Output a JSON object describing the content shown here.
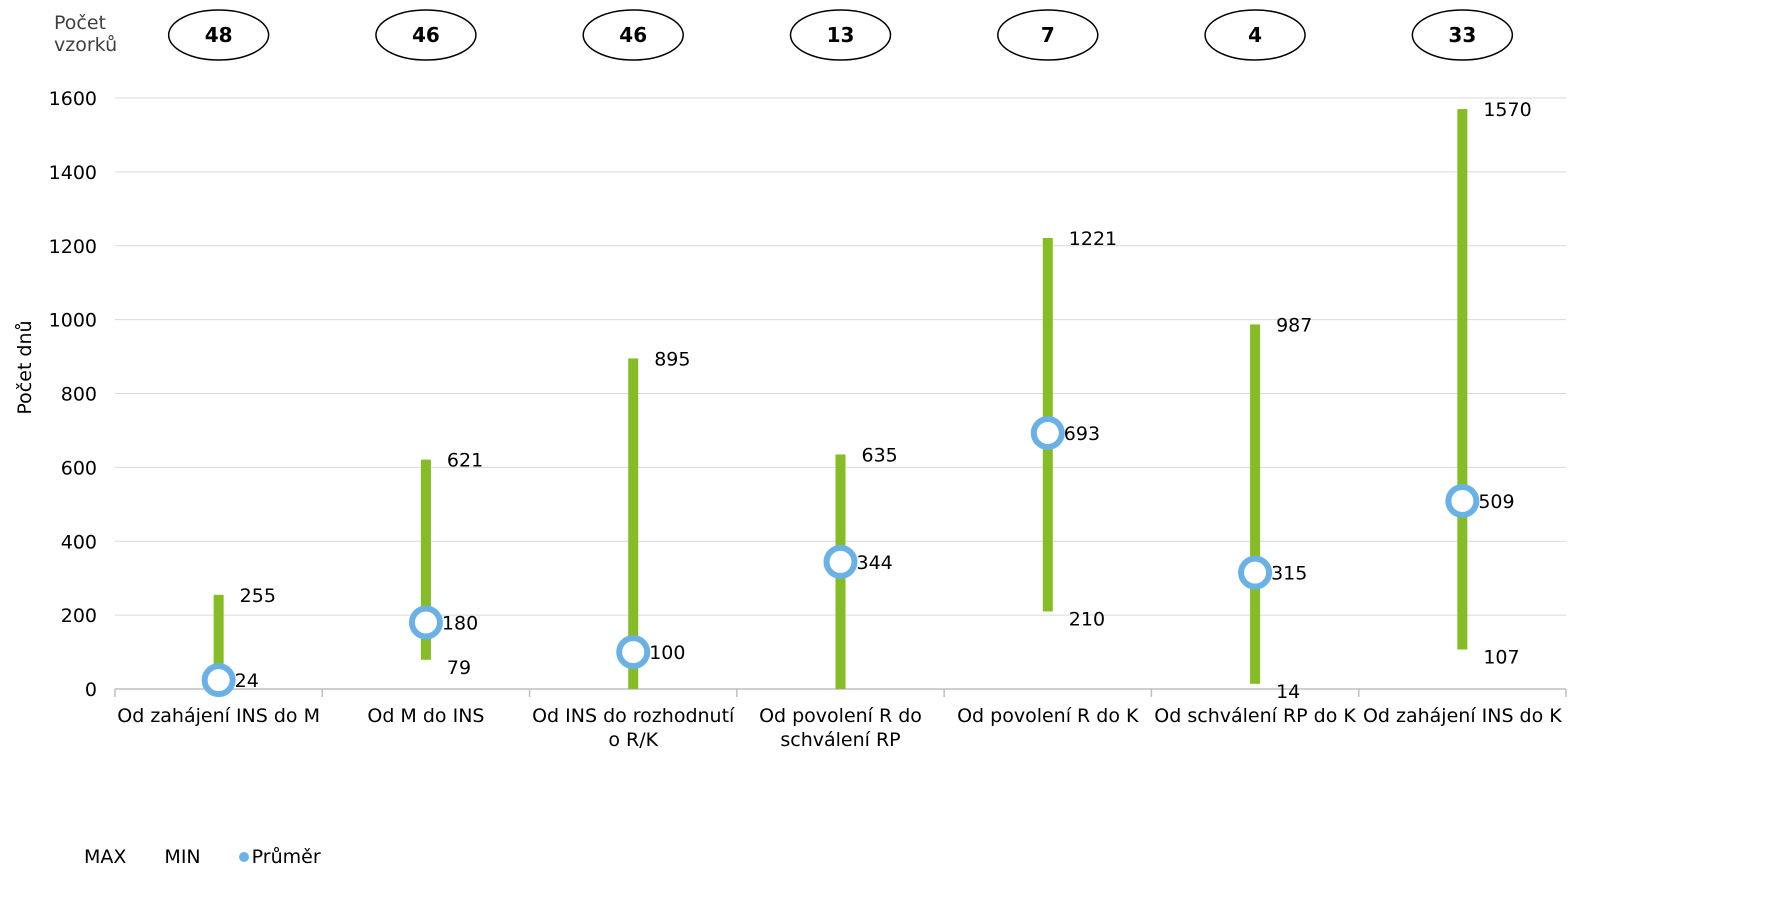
{
  "sample_header": {
    "line1": "Počet",
    "line2": "vzorků"
  },
  "sample_counts": [
    "48",
    "46",
    "46",
    "13",
    "7",
    "4",
    "33"
  ],
  "legend": {
    "max": "MAX",
    "min": "MIN",
    "avg": "Průměr"
  },
  "colors": {
    "range_bar": "#86bc25",
    "average_marker": "#6ab2e6",
    "grid": "#d9d9d9",
    "axis": "#bfbfbf"
  },
  "chart_data": {
    "type": "range_bar_with_marker",
    "ylabel": "Počet dnů",
    "ylim": [
      0,
      1600
    ],
    "yticks": [
      0,
      200,
      400,
      600,
      800,
      1000,
      1200,
      1400,
      1600
    ],
    "grid": true,
    "legend_position": "bottom-left",
    "categories": [
      [
        "Od zahájení INS do M"
      ],
      [
        "Od M do INS"
      ],
      [
        "Od INS do rozhodnutí",
        "o R/K"
      ],
      [
        "Od povolení R do",
        "schválení RP"
      ],
      [
        "Od povolení R do K"
      ],
      [
        "Od schválení RP do K"
      ],
      [
        "Od zahájení INS do K"
      ]
    ],
    "series": [
      {
        "name": "MAX",
        "values": [
          255,
          621,
          895,
          635,
          1221,
          987,
          1570
        ]
      },
      {
        "name": "MIN",
        "values": [
          null,
          79,
          null,
          null,
          210,
          14,
          107
        ]
      },
      {
        "name": "Průměr",
        "values": [
          24,
          180,
          100,
          344,
          693,
          315,
          509
        ]
      }
    ],
    "bar_bottoms": [
      0,
      79,
      0,
      0,
      210,
      14,
      107
    ]
  }
}
